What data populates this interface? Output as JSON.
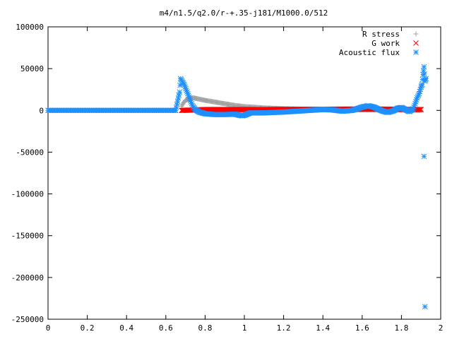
{
  "chart_data": {
    "type": "scatter",
    "title": "m4/n1.5/q2.0/r-+.35-j181/M1000.0/512",
    "xlabel": "",
    "ylabel": "",
    "xlim": [
      0,
      2
    ],
    "ylim": [
      -250000,
      100000
    ],
    "x_ticks": [
      0,
      0.2,
      0.4,
      0.6,
      0.8,
      1,
      1.2,
      1.4,
      1.6,
      1.8,
      2
    ],
    "x_tick_labels": [
      "0",
      "0.2",
      "0.4",
      "0.6",
      "0.8",
      "1",
      "1.2",
      "1.4",
      "1.6",
      "1.8",
      "2"
    ],
    "y_ticks": [
      100000,
      50000,
      0,
      -50000,
      -100000,
      -150000,
      -200000,
      -250000
    ],
    "y_tick_labels": [
      "100000",
      "50000",
      "0",
      "-50000",
      "-100000",
      "-150000",
      "-200000",
      "-250000"
    ],
    "grid": false,
    "legend_position": "top-right",
    "series": [
      {
        "name": "R stress",
        "marker": "plus",
        "color": "#a0a0a0",
        "points": [
          [
            0.68,
            5000
          ],
          [
            0.69,
            9000
          ],
          [
            0.7,
            12000
          ],
          [
            0.72,
            14000
          ],
          [
            0.74,
            15000
          ],
          [
            0.76,
            14000
          ],
          [
            0.8,
            12000
          ],
          [
            0.85,
            10000
          ],
          [
            0.9,
            8000
          ],
          [
            0.95,
            6000
          ],
          [
            1.0,
            4500
          ],
          [
            1.1,
            3000
          ],
          [
            1.2,
            2000
          ],
          [
            1.3,
            1500
          ],
          [
            1.4,
            1000
          ],
          [
            1.5,
            800
          ],
          [
            1.6,
            600
          ],
          [
            1.7,
            500
          ],
          [
            1.8,
            400
          ],
          [
            1.9,
            200
          ]
        ]
      },
      {
        "name": "G work",
        "marker": "cross",
        "color": "#ff0000",
        "points": [
          [
            0.68,
            0
          ],
          [
            0.75,
            500
          ],
          [
            0.8,
            1000
          ],
          [
            0.9,
            1000
          ],
          [
            1.0,
            1000
          ],
          [
            1.1,
            1000
          ],
          [
            1.2,
            1200
          ],
          [
            1.3,
            1200
          ],
          [
            1.4,
            1200
          ],
          [
            1.5,
            1500
          ],
          [
            1.6,
            1500
          ],
          [
            1.7,
            1500
          ],
          [
            1.8,
            1200
          ],
          [
            1.9,
            1000
          ]
        ]
      },
      {
        "name": "Acoustic flux",
        "marker": "star",
        "color": "#1e90ff",
        "points": [
          [
            0.65,
            0
          ],
          [
            0.67,
            22000
          ],
          [
            0.675,
            38000
          ],
          [
            0.685,
            34000
          ],
          [
            0.695,
            30000
          ],
          [
            0.705,
            24000
          ],
          [
            0.715,
            18000
          ],
          [
            0.725,
            12000
          ],
          [
            0.735,
            6000
          ],
          [
            0.75,
            1000
          ],
          [
            0.77,
            -2000
          ],
          [
            0.8,
            -4000
          ],
          [
            0.85,
            -5000
          ],
          [
            0.9,
            -5000
          ],
          [
            0.95,
            -4500
          ],
          [
            0.97,
            -5500
          ],
          [
            0.99,
            -6500
          ],
          [
            1.01,
            -5000
          ],
          [
            1.03,
            -3000
          ],
          [
            1.1,
            -3000
          ],
          [
            1.2,
            -2000
          ],
          [
            1.3,
            -500
          ],
          [
            1.4,
            1000
          ],
          [
            1.45,
            500
          ],
          [
            1.5,
            -1000
          ],
          [
            1.55,
            0
          ],
          [
            1.6,
            4000
          ],
          [
            1.63,
            5500
          ],
          [
            1.66,
            4000
          ],
          [
            1.7,
            -500
          ],
          [
            1.73,
            -2500
          ],
          [
            1.76,
            -500
          ],
          [
            1.78,
            2500
          ],
          [
            1.8,
            3500
          ],
          [
            1.82,
            1000
          ],
          [
            1.84,
            -1500
          ],
          [
            1.86,
            2000
          ],
          [
            1.87,
            8000
          ],
          [
            1.88,
            15000
          ],
          [
            1.89,
            20000
          ],
          [
            1.9,
            28000
          ],
          [
            1.905,
            31000
          ],
          [
            1.91,
            43000
          ],
          [
            1.915,
            52000
          ],
          [
            1.92,
            35000
          ],
          [
            1.925,
            38000
          ],
          [
            1.915,
            -55000
          ],
          [
            1.92,
            -235000
          ]
        ]
      }
    ],
    "baseline_zero_series": "Acoustic flux",
    "baseline_zero_range": [
      0,
      0.65
    ]
  },
  "colors": {
    "r_stress": "#a0a0a0",
    "g_work": "#ff0000",
    "acoustic_flux": "#1e90ff"
  }
}
